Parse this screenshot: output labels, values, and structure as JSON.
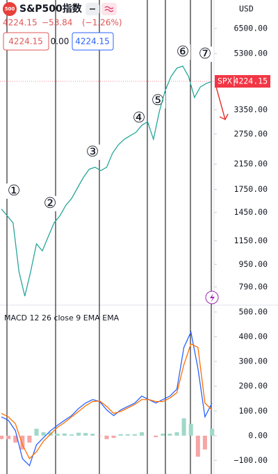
{
  "header": {
    "logo": "500",
    "title": "S&P500指数",
    "price": "4224.15",
    "change": "−53.84",
    "change_pct": "(−1.26%)",
    "bid": "4224.15",
    "spread": "0.00",
    "ask": "4224.15",
    "currency": "USD"
  },
  "chart_data": [
    {
      "type": "line",
      "symbol": "SPX",
      "log": true,
      "color": "#26a69a",
      "last_color": "#f23645",
      "values": [
        1492,
        1411,
        1332,
        895,
        733,
        895,
        1123,
        1060,
        1189,
        1332,
        1411,
        1535,
        1625,
        1770,
        1927,
        2062,
        2097,
        2040,
        2097,
        2351,
        2517,
        2634,
        2710,
        2787,
        2951,
        3038,
        2634,
        3306,
        3918,
        4393,
        4702,
        4782,
        4393,
        3703,
        4033,
        4149,
        4224.15
      ],
      "ylim": [
        685,
        8200
      ],
      "yticks": [
        {
          "value": 790,
          "label": "790.00"
        },
        {
          "value": 950,
          "label": "950.00"
        },
        {
          "value": 1150,
          "label": "1150.00"
        },
        {
          "value": 1450,
          "label": "1450.00"
        },
        {
          "value": 1750,
          "label": "1750.00"
        },
        {
          "value": 2150,
          "label": "2150.00"
        },
        {
          "value": 2750,
          "label": "2750.00"
        },
        {
          "value": 3350,
          "label": "3350.00"
        },
        {
          "value": 5300,
          "label": "5300.00"
        },
        {
          "value": 6500,
          "label": "6500.00"
        }
      ],
      "annotations": [
        "①",
        "②",
        "③",
        "④",
        "⑤",
        "⑥",
        "⑦"
      ]
    },
    {
      "type": "line",
      "legend": "MACD 12 26 close 9 EMA EMA",
      "series": [
        {
          "kind": "bar",
          "pos_color": "#9fd8c8",
          "neg_color": "#f6a5a5",
          "values": [
            -14,
            -14,
            -28,
            -56,
            -28,
            28,
            14,
            14,
            8,
            9,
            5,
            12,
            11,
            8,
            -2,
            -14,
            -9,
            6,
            6,
            6,
            14,
            0,
            -6,
            8,
            8,
            14,
            70,
            48,
            -85,
            -56,
            28
          ]
        },
        {
          "kind": "line",
          "color": "#2962ff",
          "values": [
            76,
            62,
            20,
            -93,
            -121,
            -37,
            -8,
            20,
            42,
            62,
            81,
            110,
            132,
            146,
            138,
            104,
            81,
            104,
            118,
            132,
            160,
            146,
            132,
            146,
            160,
            188,
            357,
            419,
            272,
            76,
            132
          ]
        },
        {
          "kind": "line",
          "color": "#ff6d00",
          "values": [
            90,
            76,
            48,
            -37,
            -93,
            -65,
            -22,
            6,
            34,
            53,
            76,
            98,
            121,
            138,
            140,
            118,
            90,
            98,
            112,
            126,
            146,
            146,
            138,
            138,
            152,
            174,
            287,
            371,
            357,
            132,
            104
          ]
        }
      ],
      "ylim": [
        -155,
        525
      ],
      "yticks": [
        {
          "value": -100,
          "label": "−100.00"
        },
        {
          "value": 0,
          "label": "0.00"
        },
        {
          "value": 100,
          "label": "100.00"
        },
        {
          "value": 200,
          "label": "200.00"
        },
        {
          "value": 300,
          "label": "300.00"
        },
        {
          "value": 400,
          "label": "400.00"
        },
        {
          "value": 500,
          "label": "500.00"
        }
      ]
    }
  ]
}
